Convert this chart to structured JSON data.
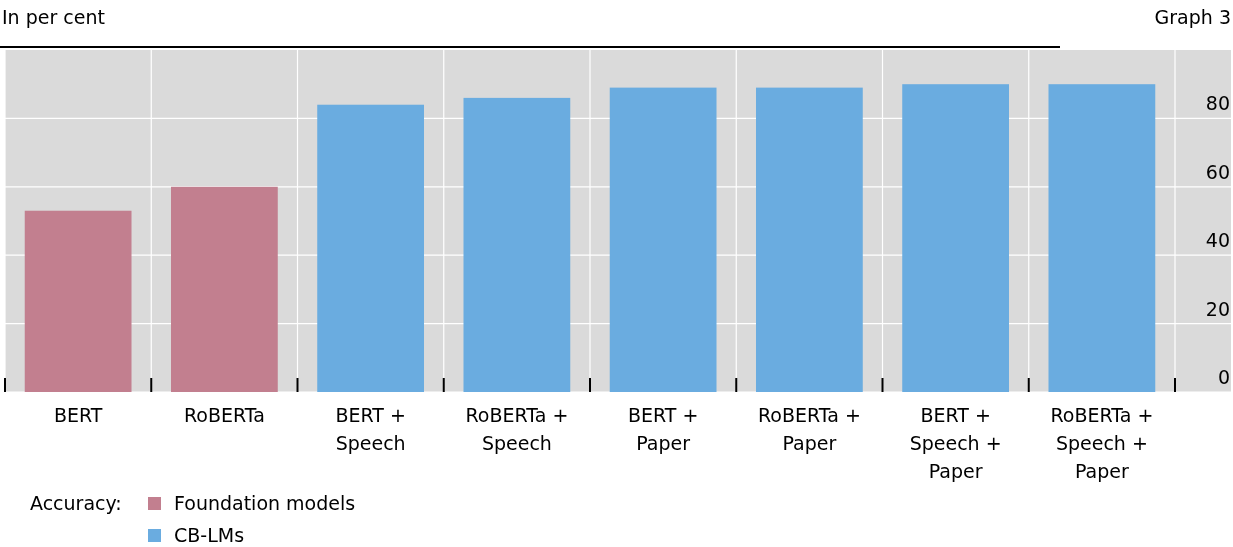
{
  "chart_data": {
    "type": "bar",
    "title": "Graph 3",
    "subtitle": "In per cent",
    "legend_title": "Accuracy:",
    "categories": [
      "BERT",
      "RoBERTa",
      "BERT +\nSpeech",
      "RoBERTa +\nSpeech",
      "BERT +\nPaper",
      "RoBERTa +\nPaper",
      "BERT +\nSpeech +\nPaper",
      "RoBERTa +\nSpeech +\nPaper"
    ],
    "series": [
      {
        "name": "Foundation models",
        "color": "#c27f8f",
        "values": [
          53,
          60,
          null,
          null,
          null,
          null,
          null,
          null
        ]
      },
      {
        "name": "CB-LMs",
        "color": "#6aace0",
        "values": [
          null,
          null,
          84,
          86,
          89,
          89,
          90,
          90
        ]
      }
    ],
    "ylim": [
      0,
      100
    ],
    "yticks": [
      0,
      20,
      40,
      60,
      80
    ],
    "grid": true,
    "legend": "bottom left"
  }
}
